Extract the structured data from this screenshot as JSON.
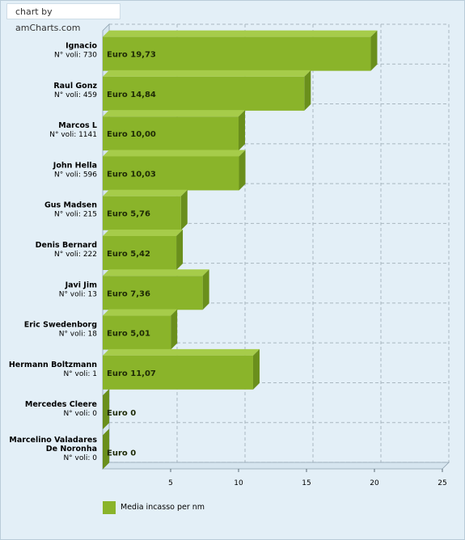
{
  "credit": "chart by amCharts.com",
  "chart_data": {
    "type": "bar",
    "orientation": "horizontal",
    "categories": [
      {
        "name": "Ignacio",
        "sub": "N° voli: 730"
      },
      {
        "name": "Raul Gonz",
        "sub": "N° voli: 459"
      },
      {
        "name": "Marcos L",
        "sub": "N° voli: 1141"
      },
      {
        "name": "John Hella",
        "sub": "N° voli: 596"
      },
      {
        "name": "Gus Madsen",
        "sub": "N° voli: 215"
      },
      {
        "name": "Denis Bernard",
        "sub": "N° voli: 222"
      },
      {
        "name": "Javi Jim",
        "sub": "N° voli: 13"
      },
      {
        "name": "Eric Swedenborg",
        "sub": "N° voli: 18"
      },
      {
        "name": "Hermann Boltzmann",
        "sub": "N° voli: 1"
      },
      {
        "name": "Mercedes Cleere",
        "sub": "N° voli: 0"
      },
      {
        "name": "Marcelino  Valadares De Noronha",
        "sub": "N° voli: 0"
      }
    ],
    "series": [
      {
        "name": "Media incasso per nm",
        "values": [
          19.73,
          14.84,
          10.0,
          10.03,
          5.76,
          5.42,
          7.36,
          5.01,
          11.07,
          0,
          0
        ],
        "labels": [
          "Euro 19,73",
          "Euro 14,84",
          "Euro 10,00",
          "Euro 10,03",
          "Euro 5,76",
          "Euro 5,42",
          "Euro 7,36",
          "Euro 5,01",
          "Euro 11,07",
          "Euro 0",
          "Euro 0"
        ]
      }
    ],
    "xlim": [
      0,
      25
    ],
    "xticks": [
      5,
      10,
      15,
      20,
      25
    ],
    "grid": true,
    "legend_position": "bottom-left",
    "colors": {
      "bar": "#8ab42a",
      "bar_top": "#a6cc4a",
      "bar_side": "#6a8f1c",
      "grid": "#a9b7c0"
    }
  },
  "legend": {
    "label": "Media incasso per nm"
  }
}
